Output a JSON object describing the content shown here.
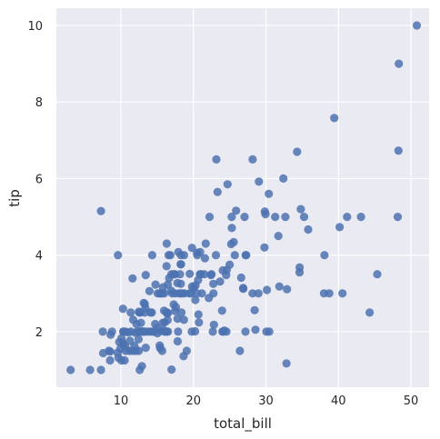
{
  "chart_data": {
    "type": "scatter",
    "title": "",
    "xlabel": "total_bill",
    "ylabel": "tip",
    "xlim": [
      1.1,
      52.5
    ],
    "ylim": [
      0.55,
      10.45
    ],
    "xticks": [
      10,
      20,
      30,
      40,
      50
    ],
    "yticks": [
      2,
      4,
      6,
      8,
      10
    ],
    "grid": true,
    "colors": {
      "background": "#eaeaf2",
      "grid": "#ffffff",
      "point": "#4c72b0"
    },
    "points": [
      [
        3.07,
        1.0
      ],
      [
        5.75,
        1.0
      ],
      [
        7.25,
        1.0
      ],
      [
        7.25,
        5.15
      ],
      [
        7.51,
        2.0
      ],
      [
        7.56,
        1.44
      ],
      [
        8.35,
        1.5
      ],
      [
        8.51,
        1.25
      ],
      [
        8.52,
        1.48
      ],
      [
        8.58,
        1.92
      ],
      [
        8.77,
        2.0
      ],
      [
        9.55,
        1.45
      ],
      [
        9.6,
        4.0
      ],
      [
        9.68,
        1.32
      ],
      [
        9.78,
        1.73
      ],
      [
        9.94,
        1.56
      ],
      [
        10.07,
        1.83
      ],
      [
        10.07,
        1.25
      ],
      [
        10.27,
        1.71
      ],
      [
        10.29,
        2.6
      ],
      [
        10.33,
        1.67
      ],
      [
        10.33,
        2.0
      ],
      [
        10.34,
        1.66
      ],
      [
        10.34,
        2.0
      ],
      [
        10.51,
        1.25
      ],
      [
        10.59,
        1.61
      ],
      [
        10.63,
        2.0
      ],
      [
        10.65,
        1.5
      ],
      [
        11.02,
        1.98
      ],
      [
        11.17,
        1.5
      ],
      [
        11.24,
        1.76
      ],
      [
        11.35,
        2.5
      ],
      [
        11.38,
        2.0
      ],
      [
        11.59,
        1.5
      ],
      [
        11.61,
        3.39
      ],
      [
        11.69,
        2.31
      ],
      [
        11.87,
        1.63
      ],
      [
        12.02,
        1.97
      ],
      [
        12.03,
        1.5
      ],
      [
        12.16,
        2.2
      ],
      [
        12.26,
        2.0
      ],
      [
        12.43,
        1.8
      ],
      [
        12.46,
        1.5
      ],
      [
        12.48,
        2.52
      ],
      [
        12.54,
        2.5
      ],
      [
        12.6,
        1.0
      ],
      [
        12.66,
        2.5
      ],
      [
        12.69,
        2.0
      ],
      [
        12.74,
        2.01
      ],
      [
        12.76,
        2.23
      ],
      [
        12.9,
        1.1
      ],
      [
        13.0,
        2.0
      ],
      [
        13.03,
        2.0
      ],
      [
        13.13,
        2.0
      ],
      [
        13.16,
        2.75
      ],
      [
        13.27,
        2.5
      ],
      [
        13.28,
        2.72
      ],
      [
        13.37,
        2.0
      ],
      [
        13.39,
        2.61
      ],
      [
        13.42,
        3.48
      ],
      [
        13.42,
        1.58
      ],
      [
        13.81,
        2.0
      ],
      [
        13.94,
        3.06
      ],
      [
        14.07,
        2.5
      ],
      [
        14.15,
        2.0
      ],
      [
        14.26,
        2.5
      ],
      [
        14.31,
        4.0
      ],
      [
        14.48,
        2.0
      ],
      [
        14.52,
        2.0
      ],
      [
        14.73,
        2.2
      ],
      [
        14.78,
        3.23
      ],
      [
        15.01,
        2.09
      ],
      [
        15.04,
        1.96
      ],
      [
        15.06,
        3.0
      ],
      [
        15.36,
        1.64
      ],
      [
        15.38,
        3.0
      ],
      [
        15.42,
        1.57
      ],
      [
        15.48,
        2.02
      ],
      [
        15.53,
        3.0
      ],
      [
        15.69,
        1.5
      ],
      [
        15.69,
        3.0
      ],
      [
        15.77,
        2.23
      ],
      [
        15.81,
        3.16
      ],
      [
        15.95,
        2.55
      ],
      [
        15.98,
        2.03
      ],
      [
        15.98,
        3.0
      ],
      [
        16.0,
        2.0
      ],
      [
        16.04,
        2.24
      ],
      [
        16.21,
        2.0
      ],
      [
        16.27,
        2.5
      ],
      [
        16.29,
        3.71
      ],
      [
        16.31,
        2.0
      ],
      [
        16.32,
        4.3
      ],
      [
        16.4,
        2.5
      ],
      [
        16.43,
        2.3
      ],
      [
        16.45,
        2.47
      ],
      [
        16.47,
        3.23
      ],
      [
        16.49,
        2.0
      ],
      [
        16.58,
        4.0
      ],
      [
        16.66,
        3.4
      ],
      [
        16.82,
        4.0
      ],
      [
        16.93,
        3.07
      ],
      [
        16.97,
        3.5
      ],
      [
        16.99,
        1.01
      ],
      [
        17.07,
        3.0
      ],
      [
        17.29,
        2.71
      ],
      [
        17.31,
        3.5
      ],
      [
        17.46,
        2.54
      ],
      [
        17.47,
        3.5
      ],
      [
        17.51,
        3.0
      ],
      [
        17.59,
        2.64
      ],
      [
        17.78,
        3.27
      ],
      [
        17.81,
        2.34
      ],
      [
        17.82,
        1.75
      ],
      [
        17.89,
        2.0
      ],
      [
        17.92,
        4.08
      ],
      [
        18.04,
        3.0
      ],
      [
        18.15,
        3.5
      ],
      [
        18.24,
        3.76
      ],
      [
        18.26,
        3.25
      ],
      [
        18.28,
        4.0
      ],
      [
        18.29,
        3.76
      ],
      [
        18.29,
        3.0
      ],
      [
        18.35,
        2.5
      ],
      [
        18.43,
        3.0
      ],
      [
        18.64,
        1.36
      ],
      [
        18.69,
        2.31
      ],
      [
        18.71,
        4.0
      ],
      [
        18.78,
        3.0
      ],
      [
        19.08,
        1.5
      ],
      [
        19.44,
        3.0
      ],
      [
        19.49,
        3.51
      ],
      [
        19.65,
        3.0
      ],
      [
        19.77,
        2.0
      ],
      [
        19.81,
        4.19
      ],
      [
        19.82,
        3.18
      ],
      [
        20.08,
        3.15
      ],
      [
        20.23,
        2.01
      ],
      [
        20.27,
        2.83
      ],
      [
        20.29,
        3.21
      ],
      [
        20.45,
        3.0
      ],
      [
        20.49,
        4.06
      ],
      [
        20.53,
        4.0
      ],
      [
        20.65,
        3.35
      ],
      [
        20.69,
        2.45
      ],
      [
        20.76,
        2.24
      ],
      [
        20.9,
        3.5
      ],
      [
        20.92,
        4.08
      ],
      [
        21.01,
        3.5
      ],
      [
        21.16,
        3.0
      ],
      [
        21.5,
        3.5
      ],
      [
        21.58,
        3.92
      ],
      [
        21.7,
        4.3
      ],
      [
        22.12,
        2.88
      ],
      [
        22.23,
        5.0
      ],
      [
        22.42,
        3.48
      ],
      [
        22.49,
        3.5
      ],
      [
        22.67,
        2.0
      ],
      [
        22.75,
        3.25
      ],
      [
        22.76,
        3.0
      ],
      [
        22.82,
        2.18
      ],
      [
        23.1,
        4.0
      ],
      [
        23.17,
        6.5
      ],
      [
        23.33,
        5.65
      ],
      [
        23.68,
        3.31
      ],
      [
        23.95,
        2.55
      ],
      [
        24.01,
        2.0
      ],
      [
        24.06,
        3.6
      ],
      [
        24.08,
        2.0
      ],
      [
        24.27,
        2.03
      ],
      [
        24.52,
        3.48
      ],
      [
        24.55,
        2.0
      ],
      [
        24.59,
        3.61
      ],
      [
        24.71,
        5.85
      ],
      [
        25.0,
        3.75
      ],
      [
        25.21,
        4.29
      ],
      [
        25.28,
        5.0
      ],
      [
        25.29,
        4.71
      ],
      [
        25.56,
        4.34
      ],
      [
        25.71,
        4.0
      ],
      [
        25.89,
        5.16
      ],
      [
        26.41,
        1.5
      ],
      [
        26.59,
        3.41
      ],
      [
        26.86,
        3.14
      ],
      [
        26.88,
        3.12
      ],
      [
        27.05,
        5.0
      ],
      [
        27.18,
        2.0
      ],
      [
        27.2,
        4.0
      ],
      [
        27.28,
        4.0
      ],
      [
        28.15,
        3.0
      ],
      [
        28.17,
        6.5
      ],
      [
        28.44,
        2.56
      ],
      [
        28.55,
        2.05
      ],
      [
        28.97,
        3.0
      ],
      [
        29.03,
        5.92
      ],
      [
        29.8,
        4.2
      ],
      [
        29.85,
        5.14
      ],
      [
        29.93,
        5.07
      ],
      [
        30.06,
        2.0
      ],
      [
        30.14,
        3.09
      ],
      [
        30.4,
        5.6
      ],
      [
        30.46,
        2.0
      ],
      [
        31.27,
        5.0
      ],
      [
        31.71,
        4.5
      ],
      [
        31.85,
        3.18
      ],
      [
        32.4,
        6.0
      ],
      [
        32.68,
        5.0
      ],
      [
        32.83,
        1.17
      ],
      [
        32.9,
        3.11
      ],
      [
        34.3,
        6.7
      ],
      [
        34.63,
        3.55
      ],
      [
        34.65,
        3.68
      ],
      [
        34.81,
        5.2
      ],
      [
        35.26,
        5.0
      ],
      [
        35.83,
        4.67
      ],
      [
        38.01,
        3.0
      ],
      [
        38.07,
        4.0
      ],
      [
        38.73,
        3.0
      ],
      [
        39.42,
        7.58
      ],
      [
        40.17,
        4.73
      ],
      [
        40.55,
        3.0
      ],
      [
        41.19,
        5.0
      ],
      [
        43.11,
        5.0
      ],
      [
        44.3,
        2.5
      ],
      [
        45.35,
        3.5
      ],
      [
        48.17,
        5.0
      ],
      [
        48.27,
        6.73
      ],
      [
        48.33,
        9.0
      ],
      [
        50.81,
        10.0
      ]
    ]
  }
}
